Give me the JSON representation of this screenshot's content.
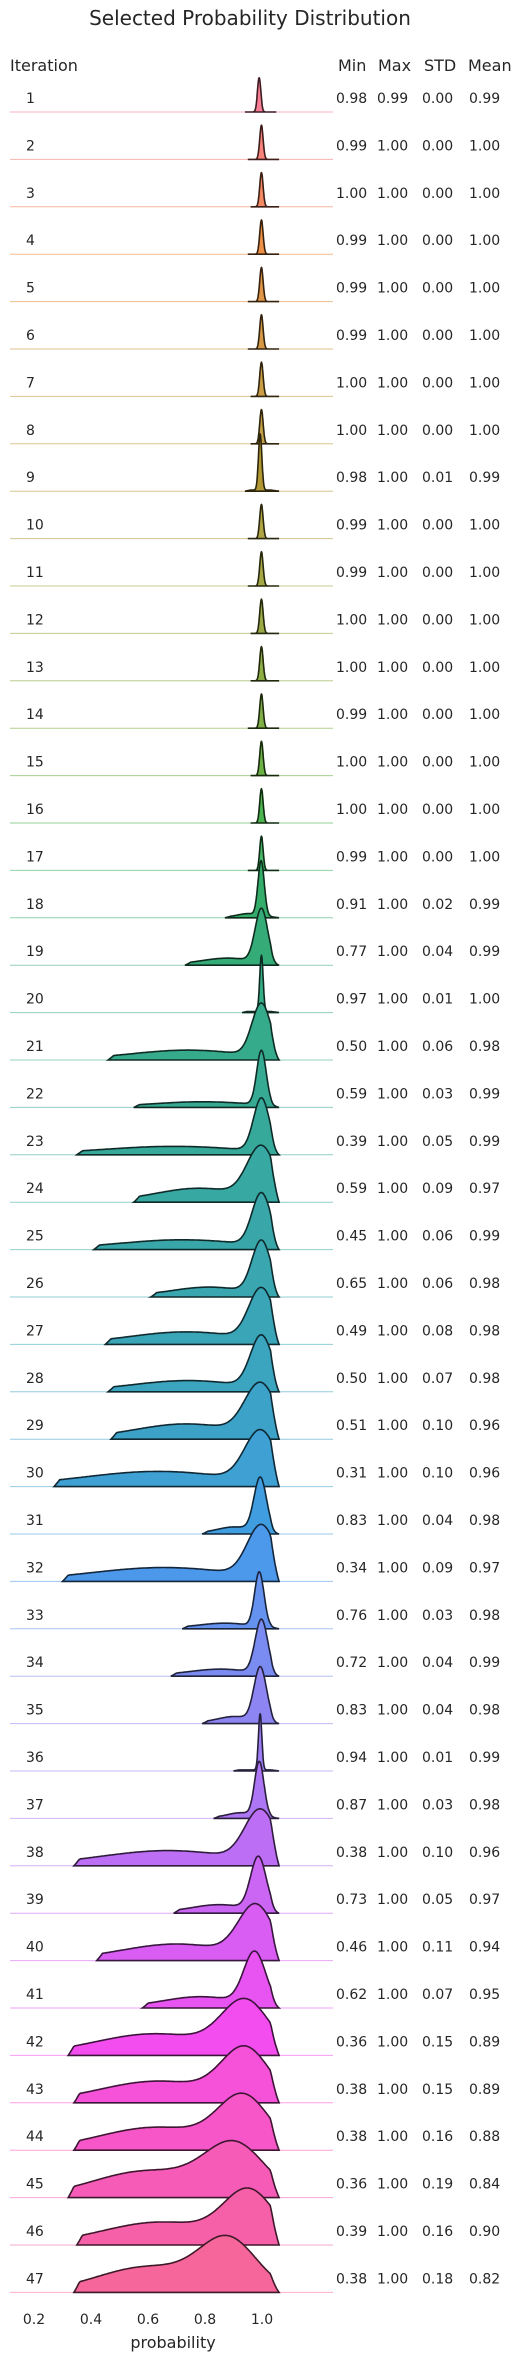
{
  "chart_data": {
    "type": "ridgeline",
    "title": "Selected Probability Distribution",
    "xlabel": "probability",
    "xlim": [
      0.15,
      1.25
    ],
    "xticks": [
      "0.2",
      "0.4",
      "0.6",
      "0.8",
      "1.0"
    ],
    "headers": {
      "iteration": "Iteration",
      "min": "Min",
      "max": "Max",
      "std": "STD",
      "mean": "Mean"
    },
    "iterations": [
      {
        "label": "1",
        "min": "0.98",
        "max": "0.99",
        "std": "0.00",
        "mean": "0.99",
        "color": "#f77189"
      },
      {
        "label": "2",
        "min": "0.99",
        "max": "1.00",
        "std": "0.00",
        "mean": "1.00",
        "color": "#f6756c"
      },
      {
        "label": "3",
        "min": "1.00",
        "max": "1.00",
        "std": "0.00",
        "mean": "1.00",
        "color": "#f37b52"
      },
      {
        "label": "4",
        "min": "0.99",
        "max": "1.00",
        "std": "0.00",
        "mean": "1.00",
        "color": "#e98432"
      },
      {
        "label": "5",
        "min": "0.99",
        "max": "1.00",
        "std": "0.00",
        "mean": "1.00",
        "color": "#dc8932"
      },
      {
        "label": "6",
        "min": "0.99",
        "max": "1.00",
        "std": "0.00",
        "mean": "1.00",
        "color": "#d08e32"
      },
      {
        "label": "7",
        "min": "1.00",
        "max": "1.00",
        "std": "0.00",
        "mean": "1.00",
        "color": "#c59232"
      },
      {
        "label": "8",
        "min": "1.00",
        "max": "1.00",
        "std": "0.00",
        "mean": "1.00",
        "color": "#bb9532"
      },
      {
        "label": "9",
        "min": "0.98",
        "max": "1.00",
        "std": "0.01",
        "mean": "0.99",
        "color": "#b19832"
      },
      {
        "label": "10",
        "min": "0.99",
        "max": "1.00",
        "std": "0.00",
        "mean": "1.00",
        "color": "#a79b31"
      },
      {
        "label": "11",
        "min": "0.99",
        "max": "1.00",
        "std": "0.00",
        "mean": "1.00",
        "color": "#9c9e31"
      },
      {
        "label": "12",
        "min": "1.00",
        "max": "1.00",
        "std": "0.00",
        "mean": "1.00",
        "color": "#90a131"
      },
      {
        "label": "13",
        "min": "1.00",
        "max": "1.00",
        "std": "0.00",
        "mean": "1.00",
        "color": "#83a431"
      },
      {
        "label": "14",
        "min": "0.99",
        "max": "1.00",
        "std": "0.00",
        "mean": "1.00",
        "color": "#72a731"
      },
      {
        "label": "15",
        "min": "1.00",
        "max": "1.00",
        "std": "0.00",
        "mean": "1.00",
        "color": "#5caa31"
      },
      {
        "label": "16",
        "min": "1.00",
        "max": "1.00",
        "std": "0.00",
        "mean": "1.00",
        "color": "#3aad3d"
      },
      {
        "label": "17",
        "min": "0.99",
        "max": "1.00",
        "std": "0.00",
        "mean": "1.00",
        "color": "#33ae59"
      },
      {
        "label": "18",
        "min": "0.91",
        "max": "1.00",
        "std": "0.02",
        "mean": "0.99",
        "color": "#34ad6b"
      },
      {
        "label": "19",
        "min": "0.77",
        "max": "1.00",
        "std": "0.04",
        "mean": "0.99",
        "color": "#35ac78"
      },
      {
        "label": "20",
        "min": "0.97",
        "max": "1.00",
        "std": "0.01",
        "mean": "1.00",
        "color": "#35ac83"
      },
      {
        "label": "21",
        "min": "0.50",
        "max": "1.00",
        "std": "0.06",
        "mean": "0.98",
        "color": "#36ab8c"
      },
      {
        "label": "22",
        "min": "0.59",
        "max": "1.00",
        "std": "0.03",
        "mean": "0.99",
        "color": "#37aa94"
      },
      {
        "label": "23",
        "min": "0.39",
        "max": "1.00",
        "std": "0.05",
        "mean": "0.99",
        "color": "#37a99b"
      },
      {
        "label": "24",
        "min": "0.59",
        "max": "1.00",
        "std": "0.09",
        "mean": "0.97",
        "color": "#38a8a2"
      },
      {
        "label": "25",
        "min": "0.45",
        "max": "1.00",
        "std": "0.06",
        "mean": "0.99",
        "color": "#39a7a9"
      },
      {
        "label": "26",
        "min": "0.65",
        "max": "1.00",
        "std": "0.06",
        "mean": "0.98",
        "color": "#3aa6b0"
      },
      {
        "label": "27",
        "min": "0.49",
        "max": "1.00",
        "std": "0.08",
        "mean": "0.98",
        "color": "#3aa5b7"
      },
      {
        "label": "28",
        "min": "0.50",
        "max": "1.00",
        "std": "0.07",
        "mean": "0.98",
        "color": "#3ba4bf"
      },
      {
        "label": "29",
        "min": "0.51",
        "max": "1.00",
        "std": "0.10",
        "mean": "0.96",
        "color": "#3da2c8"
      },
      {
        "label": "30",
        "min": "0.31",
        "max": "1.00",
        "std": "0.10",
        "mean": "0.96",
        "color": "#3ea0d3"
      },
      {
        "label": "31",
        "min": "0.83",
        "max": "1.00",
        "std": "0.04",
        "mean": "0.98",
        "color": "#409ddf"
      },
      {
        "label": "32",
        "min": "0.34",
        "max": "1.00",
        "std": "0.09",
        "mean": "0.97",
        "color": "#4c98ea"
      },
      {
        "label": "33",
        "min": "0.76",
        "max": "1.00",
        "std": "0.03",
        "mean": "0.98",
        "color": "#6592ef"
      },
      {
        "label": "34",
        "min": "0.72",
        "max": "1.00",
        "std": "0.04",
        "mean": "0.99",
        "color": "#7a8cf1"
      },
      {
        "label": "35",
        "min": "0.83",
        "max": "1.00",
        "std": "0.04",
        "mean": "0.98",
        "color": "#8c85f2"
      },
      {
        "label": "36",
        "min": "0.94",
        "max": "1.00",
        "std": "0.01",
        "mean": "0.99",
        "color": "#9d7ef4"
      },
      {
        "label": "37",
        "min": "0.87",
        "max": "1.00",
        "std": "0.03",
        "mean": "0.98",
        "color": "#ad76f4"
      },
      {
        "label": "38",
        "min": "0.38",
        "max": "1.00",
        "std": "0.10",
        "mean": "0.96",
        "color": "#bc6ef4"
      },
      {
        "label": "39",
        "min": "0.73",
        "max": "1.00",
        "std": "0.05",
        "mean": "0.97",
        "color": "#cb65f4"
      },
      {
        "label": "40",
        "min": "0.46",
        "max": "1.00",
        "std": "0.11",
        "mean": "0.94",
        "color": "#d95cf3"
      },
      {
        "label": "41",
        "min": "0.62",
        "max": "1.00",
        "std": "0.07",
        "mean": "0.95",
        "color": "#e754f1"
      },
      {
        "label": "42",
        "min": "0.36",
        "max": "1.00",
        "std": "0.15",
        "mean": "0.89",
        "color": "#f44def"
      },
      {
        "label": "43",
        "min": "0.38",
        "max": "1.00",
        "std": "0.15",
        "mean": "0.89",
        "color": "#f551d9"
      },
      {
        "label": "44",
        "min": "0.38",
        "max": "1.00",
        "std": "0.16",
        "mean": "0.88",
        "color": "#f656c7"
      },
      {
        "label": "45",
        "min": "0.36",
        "max": "1.00",
        "std": "0.19",
        "mean": "0.84",
        "color": "#f65bb7"
      },
      {
        "label": "46",
        "min": "0.39",
        "max": "1.00",
        "std": "0.16",
        "mean": "0.90",
        "color": "#f660a8"
      },
      {
        "label": "47",
        "min": "0.38",
        "max": "1.00",
        "std": "0.18",
        "mean": "0.82",
        "color": "#f7669b"
      }
    ]
  }
}
